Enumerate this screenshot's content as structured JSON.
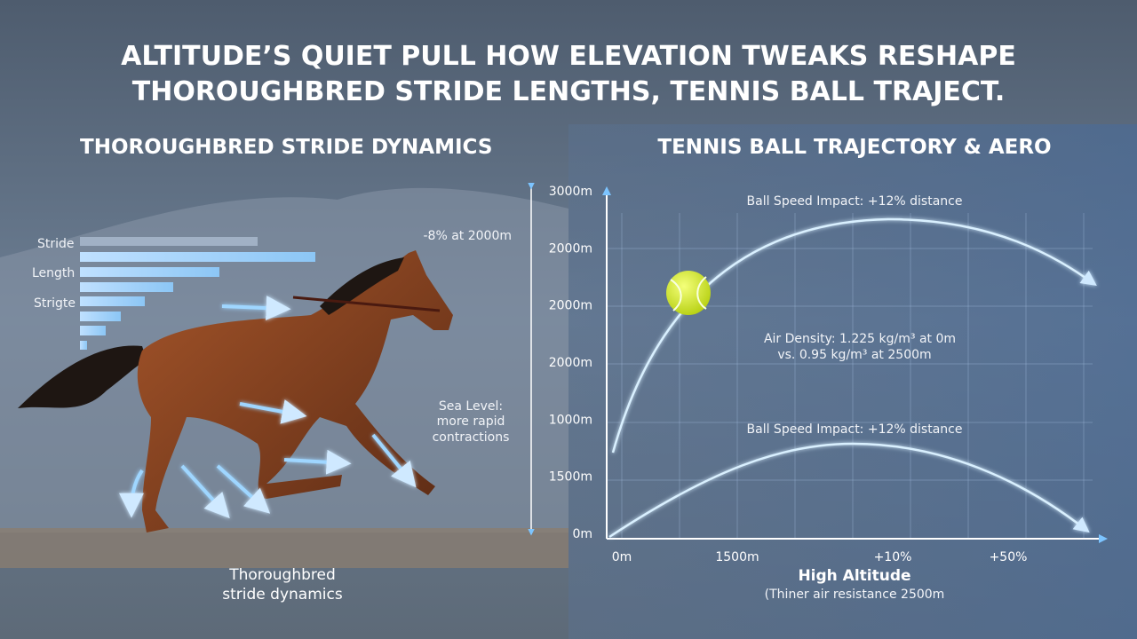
{
  "header": {
    "title_lines": [
      "ALTITUDE’S QUIET PULL HOW ELEVATION TWEAKS RESHAPE",
      "THOROUGHBRED STRIDE LENGTHS, TENNIS BALL TRAJECT."
    ]
  },
  "left_panel": {
    "heading": "THOROUGHBRED STRIDE DYNAMICS",
    "bar_labels": [
      "Stride",
      "Length",
      "Strigte"
    ],
    "annotations": [
      "-8% at 2000m",
      "Sea Level:",
      "more rapid",
      "contractions"
    ],
    "caption_lines": [
      "Thoroughbred",
      "stride dynamics"
    ]
  },
  "right_panel": {
    "heading": "TENNIS BALL TRAJECTORY & AERO",
    "y_labels": [
      "3000m",
      "2000m",
      "2000m",
      "2000m",
      "1000m",
      "1500m",
      "0m"
    ],
    "x_labels": [
      "0m",
      "1500m",
      "+10%",
      "+50%"
    ],
    "annotations": {
      "upper_curve": "Ball Speed Impact: +12% distance",
      "air_density_lines": [
        "Air Density: 1.225 kg/m³ at 0m",
        "vs. 0.95 kg/m³ at 2500m"
      ],
      "lower_curve": "Ball Speed Impact: +12% distance"
    },
    "caption": {
      "title": "High Altitude",
      "subtitle": "(Thiner air resistance 2500m"
    }
  }
}
